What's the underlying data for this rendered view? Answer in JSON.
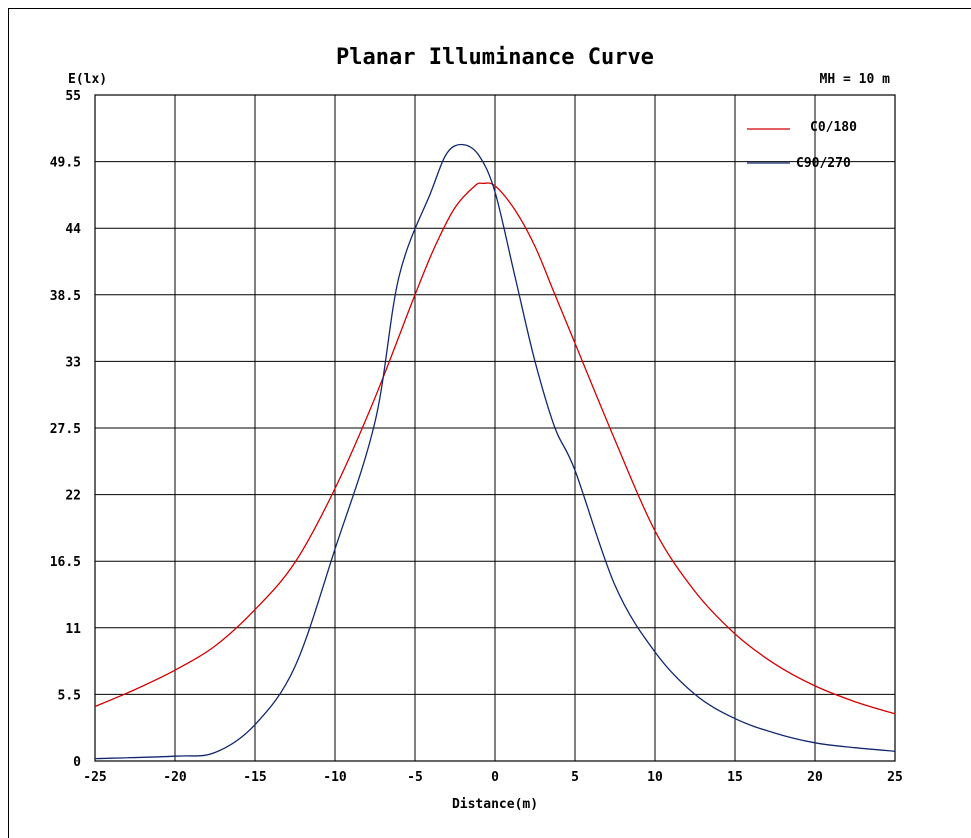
{
  "chart_data": {
    "type": "line",
    "title": "Planar Illuminance Curve",
    "ylabel": "E(lx)",
    "xlabel": "Distance(m)",
    "annotation": "MH = 10 m",
    "xlim": [
      -25,
      25
    ],
    "ylim": [
      0,
      55
    ],
    "x_ticks": [
      "-25",
      "-20",
      "-15",
      "-10",
      "-5",
      "0",
      "5",
      "10",
      "15",
      "20",
      "25"
    ],
    "y_ticks": [
      "0",
      "5.5",
      "11",
      "16.5",
      "22",
      "27.5",
      "33",
      "38.5",
      "44",
      "49.5",
      "55"
    ],
    "grid": true,
    "legend_position": "top-right",
    "series": [
      {
        "name": "C0/180",
        "color": "#d40000",
        "points": [
          [
            -25,
            4.5
          ],
          [
            -22.5,
            5.9
          ],
          [
            -20,
            7.5
          ],
          [
            -17.5,
            9.5
          ],
          [
            -15,
            12.5
          ],
          [
            -12.5,
            16.4
          ],
          [
            -10,
            22.5
          ],
          [
            -7.5,
            30.0
          ],
          [
            -5,
            38.5
          ],
          [
            -3.75,
            42.5
          ],
          [
            -2.5,
            45.7
          ],
          [
            -1.25,
            47.5
          ],
          [
            -0.75,
            47.7
          ],
          [
            0,
            47.5
          ],
          [
            1.25,
            45.5
          ],
          [
            2.5,
            42.5
          ],
          [
            3.75,
            38.5
          ],
          [
            5,
            34.5
          ],
          [
            7.5,
            26.5
          ],
          [
            10,
            19.0
          ],
          [
            12.5,
            14.0
          ],
          [
            15,
            10.5
          ],
          [
            17.5,
            8.0
          ],
          [
            20,
            6.2
          ],
          [
            22.5,
            4.9
          ],
          [
            25,
            3.9
          ]
        ]
      },
      {
        "name": "C90/270",
        "color": "#12286e",
        "points": [
          [
            -25,
            0.2
          ],
          [
            -20,
            0.4
          ],
          [
            -17.5,
            0.7
          ],
          [
            -15,
            3.0
          ],
          [
            -12.5,
            7.8
          ],
          [
            -10,
            17.5
          ],
          [
            -7.5,
            28.0
          ],
          [
            -6,
            40.0
          ],
          [
            -4,
            47.0
          ],
          [
            -3,
            50.2
          ],
          [
            -2,
            50.9
          ],
          [
            -1,
            50.0
          ],
          [
            0,
            47.0
          ],
          [
            1.25,
            40.0
          ],
          [
            2.5,
            33.0
          ],
          [
            3.75,
            27.5
          ],
          [
            5,
            24.0
          ],
          [
            7.5,
            14.5
          ],
          [
            10,
            9.0
          ],
          [
            12.5,
            5.5
          ],
          [
            15,
            3.5
          ],
          [
            17.5,
            2.3
          ],
          [
            20,
            1.5
          ],
          [
            22.5,
            1.1
          ],
          [
            25,
            0.8
          ]
        ]
      }
    ]
  }
}
